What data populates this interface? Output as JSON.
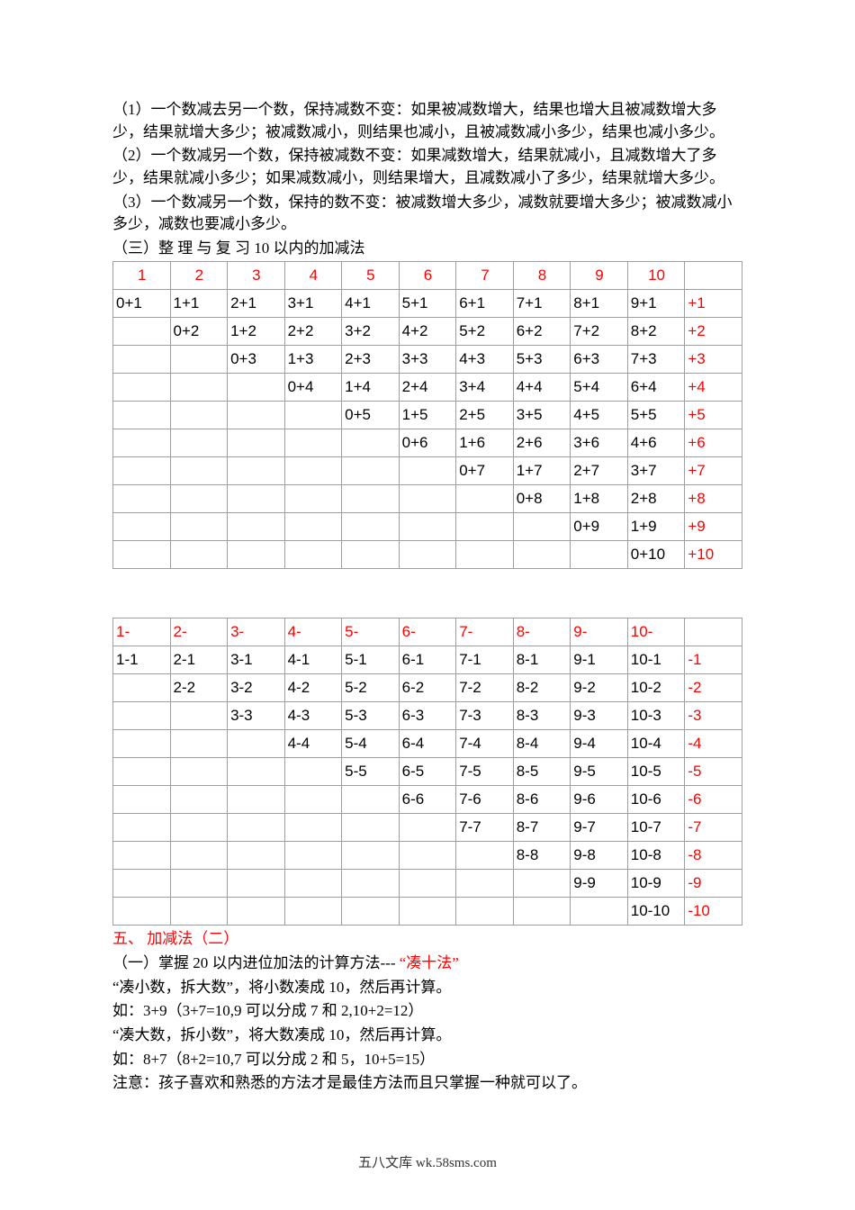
{
  "paragraphs": [
    "（1）一个数减去另一个数，保持减数不变：如果被减数增大，结果也增大且被减数增大多少，结果就增大多少；被减数减小，则结果也减小，且被减数减小多少，结果也减小多少。",
    "（2）一个数减另一个数，保持被减数不变：如果减数增大，结果就减小，且减数增大了多少，结果就减小多少；如果减数减小，则结果增大，且减数减小了多少，结果就增大多少。",
    "（3）一个数减另一个数，保持的数不变：被减数增大多少，减数就要增大多少；被减数减小多少，减数也要减小多少。",
    "（三）整 理  与 复 习 10 以内的加减法"
  ],
  "addTable": {
    "head": [
      "1",
      "2",
      "3",
      "4",
      "5",
      "6",
      "7",
      "8",
      "9",
      "10",
      ""
    ],
    "rows": [
      [
        "0+1",
        "1+1",
        "2+1",
        "3+1",
        "4+1",
        "5+1",
        "6+1",
        "7+1",
        "8+1",
        "9+1",
        "+1"
      ],
      [
        "",
        "0+2",
        "1+2",
        "2+2",
        "3+2",
        "4+2",
        "5+2",
        "6+2",
        "7+2",
        "8+2",
        "+2"
      ],
      [
        "",
        "",
        "0+3",
        "1+3",
        "2+3",
        "3+3",
        "4+3",
        "5+3",
        "6+3",
        "7+3",
        "+3"
      ],
      [
        "",
        "",
        "",
        "0+4",
        "1+4",
        "2+4",
        "3+4",
        "4+4",
        "5+4",
        "6+4",
        "+4"
      ],
      [
        "",
        "",
        "",
        "",
        "0+5",
        "1+5",
        "2+5",
        "3+5",
        "4+5",
        "5+5",
        "+5"
      ],
      [
        "",
        "",
        "",
        "",
        "",
        "0+6",
        "1+6",
        "2+6",
        "3+6",
        "4+6",
        "+6"
      ],
      [
        "",
        "",
        "",
        "",
        "",
        "",
        "0+7",
        "1+7",
        "2+7",
        "3+7",
        "+7"
      ],
      [
        "",
        "",
        "",
        "",
        "",
        "",
        "",
        "0+8",
        "1+8",
        "2+8",
        "+8"
      ],
      [
        "",
        "",
        "",
        "",
        "",
        "",
        "",
        "",
        "0+9",
        "1+9",
        "+9"
      ],
      [
        "",
        "",
        "",
        "",
        "",
        "",
        "",
        "",
        "",
        "0+10",
        "+10"
      ]
    ]
  },
  "subTable": {
    "head": [
      "1-",
      "2-",
      "3-",
      "4-",
      "5-",
      "6-",
      "7-",
      "8-",
      "9-",
      "10-",
      ""
    ],
    "rows": [
      [
        "1-1",
        "2-1",
        "3-1",
        "4-1",
        "5-1",
        "6-1",
        "7-1",
        "8-1",
        "9-1",
        "10-1",
        "-1"
      ],
      [
        "",
        "2-2",
        "3-2",
        "4-2",
        "5-2",
        "6-2",
        "7-2",
        "8-2",
        "9-2",
        "10-2",
        "-2"
      ],
      [
        "",
        "",
        "3-3",
        "4-3",
        "5-3",
        "6-3",
        "7-3",
        "8-3",
        "9-3",
        "10-3",
        "-3"
      ],
      [
        "",
        "",
        "",
        "4-4",
        "5-4",
        "6-4",
        "7-4",
        "8-4",
        "9-4",
        "10-4",
        "-4"
      ],
      [
        "",
        "",
        "",
        "",
        "5-5",
        "6-5",
        "7-5",
        "8-5",
        "9-5",
        "10-5",
        "-5"
      ],
      [
        "",
        "",
        "",
        "",
        "",
        "6-6",
        "7-6",
        "8-6",
        "9-6",
        "10-6",
        "-6"
      ],
      [
        "",
        "",
        "",
        "",
        "",
        "",
        "7-7",
        "8-7",
        "9-7",
        "10-7",
        "-7"
      ],
      [
        "",
        "",
        "",
        "",
        "",
        "",
        "",
        "8-8",
        "9-8",
        "10-8",
        "-8"
      ],
      [
        "",
        "",
        "",
        "",
        "",
        "",
        "",
        "",
        "9-9",
        "10-9",
        "-9"
      ],
      [
        "",
        "",
        "",
        "",
        "",
        "",
        "",
        "",
        "",
        "10-10",
        "-10"
      ]
    ]
  },
  "section5": {
    "title": "五、 加减法（二）",
    "line1_a": "（一）掌握 20 以内进位加法的计算方法--- ",
    "line1_b": "“凑十法”",
    "lines": [
      "“凑小数，拆大数”，将小数凑成 10，然后再计算。",
      "如：3+9（3+7=10,9 可以分成 7 和 2,10+2=12）",
      "“凑大数，拆小数”，将大数凑成 10，然后再计算。",
      "如：8+7（8+2=10,7 可以分成 2 和 5，10+5=15）",
      "注意：孩子喜欢和熟悉的方法才是最佳方法而且只掌握一种就可以了。"
    ]
  },
  "footer": "五八文库 wk.58sms.com"
}
